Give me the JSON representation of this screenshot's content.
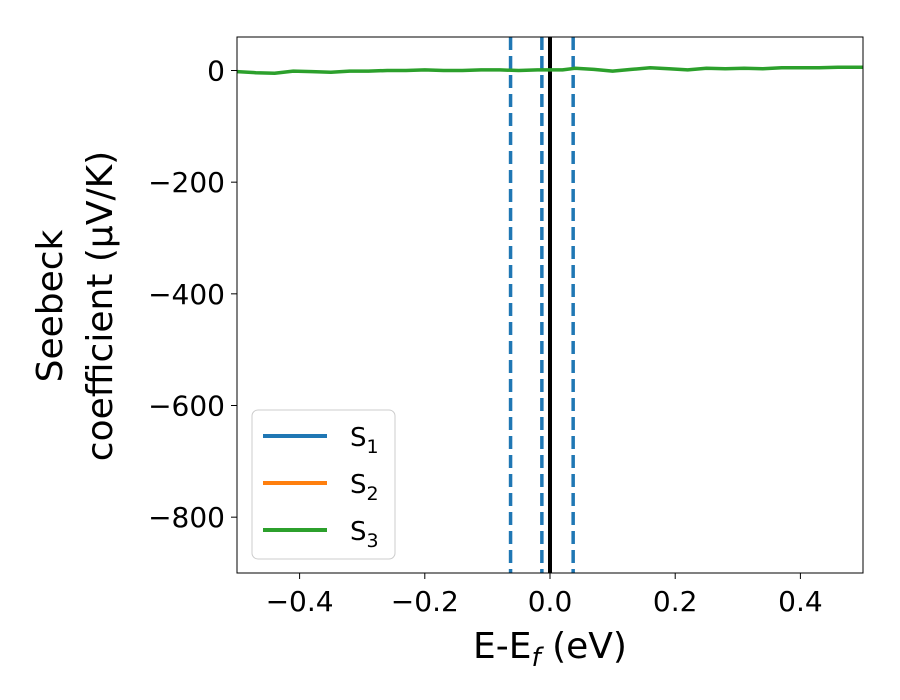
{
  "chart_data": {
    "type": "line",
    "xlabel": {
      "base": "E-E",
      "sub": "f",
      "suffix": " (eV)"
    },
    "ylabel": {
      "line1": "Seebeck",
      "line2": "coefficient  (μV/K)"
    },
    "xlim": [
      -0.5,
      0.5
    ],
    "ylim": [
      -900,
      60
    ],
    "xticks": [
      -0.4,
      -0.2,
      0.0,
      0.2,
      0.4
    ],
    "xtick_labels": [
      "−0.4",
      "−0.2",
      "0.0",
      "0.2",
      "0.4"
    ],
    "yticks": [
      0,
      -200,
      -400,
      -600,
      -800
    ],
    "ytick_labels": [
      "0",
      "−200",
      "−400",
      "−600",
      "−800"
    ],
    "grid": false,
    "legend_position": "lower-left",
    "series": [
      {
        "name": "S",
        "sub": "1",
        "color": "#1f77b4",
        "x": [],
        "y": []
      },
      {
        "name": "S",
        "sub": "2",
        "color": "#ff7f0e",
        "x": [],
        "y": []
      },
      {
        "name": "S",
        "sub": "3",
        "color": "#2ca02c",
        "x": [
          -0.5,
          -0.47,
          -0.44,
          -0.41,
          -0.38,
          -0.35,
          -0.32,
          -0.29,
          -0.26,
          -0.23,
          -0.2,
          -0.17,
          -0.14,
          -0.11,
          -0.08,
          -0.05,
          -0.02,
          0.0,
          0.02,
          0.04,
          0.07,
          0.1,
          0.13,
          0.16,
          0.19,
          0.22,
          0.25,
          0.28,
          0.31,
          0.34,
          0.37,
          0.4,
          0.43,
          0.46,
          0.5
        ],
        "y": [
          -2,
          -4,
          -5,
          -1,
          -2,
          -3,
          -1,
          -1,
          0,
          0,
          1,
          0,
          0,
          1,
          1,
          0,
          1,
          1,
          1,
          4,
          2,
          -1,
          2,
          5,
          3,
          1,
          4,
          3,
          4,
          3,
          5,
          5,
          5,
          6,
          6
        ]
      }
    ],
    "vlines": [
      {
        "x": -0.063,
        "style": "dashed",
        "color": "#1f77b4"
      },
      {
        "x": -0.013,
        "style": "dashed",
        "color": "#1f77b4"
      },
      {
        "x": 0.037,
        "style": "dashed",
        "color": "#1f77b4"
      },
      {
        "x": 0.0,
        "style": "solid",
        "color": "#000000"
      }
    ]
  }
}
